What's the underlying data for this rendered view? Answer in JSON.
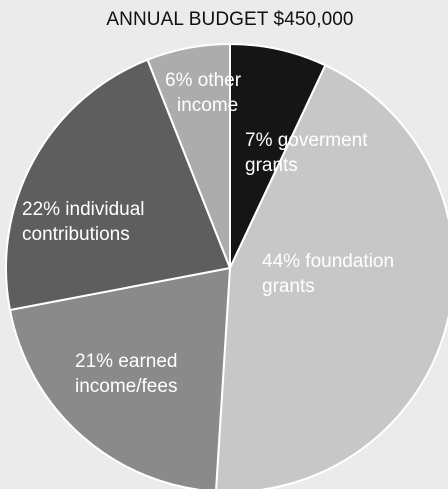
{
  "chart_data": {
    "type": "pie",
    "title": "ANNUAL BUDGET $450,000",
    "slices": [
      {
        "value": 7,
        "label_lines": [
          "7% goverment",
          "grants"
        ],
        "color": "#151515"
      },
      {
        "value": 44,
        "label_lines": [
          "44% foundation",
          "grants"
        ],
        "color": "#c7c7c7"
      },
      {
        "value": 21,
        "label_lines": [
          "21% earned",
          "income/fees"
        ],
        "color": "#8a8a8a"
      },
      {
        "value": 22,
        "label_lines": [
          "22% individual",
          "contributions"
        ],
        "color": "#5e5e5e"
      },
      {
        "value": 6,
        "label_lines": [
          "6% other",
          "income"
        ],
        "color": "#acacac"
      }
    ],
    "start_angle_deg": 0,
    "direction": "clockwise",
    "stroke": "#ffffff"
  }
}
